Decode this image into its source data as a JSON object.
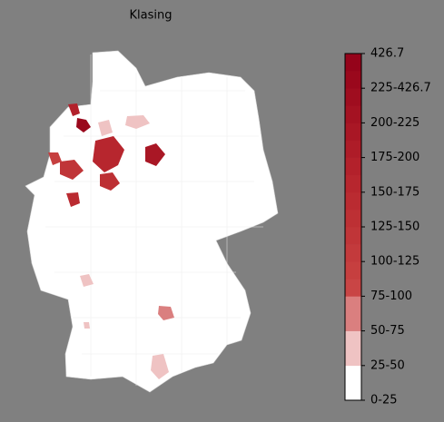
{
  "title": "Klasing",
  "colorbar": {
    "labels": [
      "0-25",
      "25-50",
      "50-75",
      "75-100",
      "100-125",
      "125-150",
      "150-175",
      "175-200",
      "200-225",
      "225-426.7",
      "426.7"
    ],
    "colors": [
      "#ffffff",
      "#efc3c3",
      "#da7f7f",
      "#c94545",
      "#c63f3f",
      "#c33a3c",
      "#c03538",
      "#bd3034",
      "#ba2b31",
      "#b7262e",
      "#b3212b",
      "#ae1c28",
      "#a91725",
      "#a41222",
      "#9f0d1f",
      "#9a081c",
      "#95031a"
    ]
  }
}
